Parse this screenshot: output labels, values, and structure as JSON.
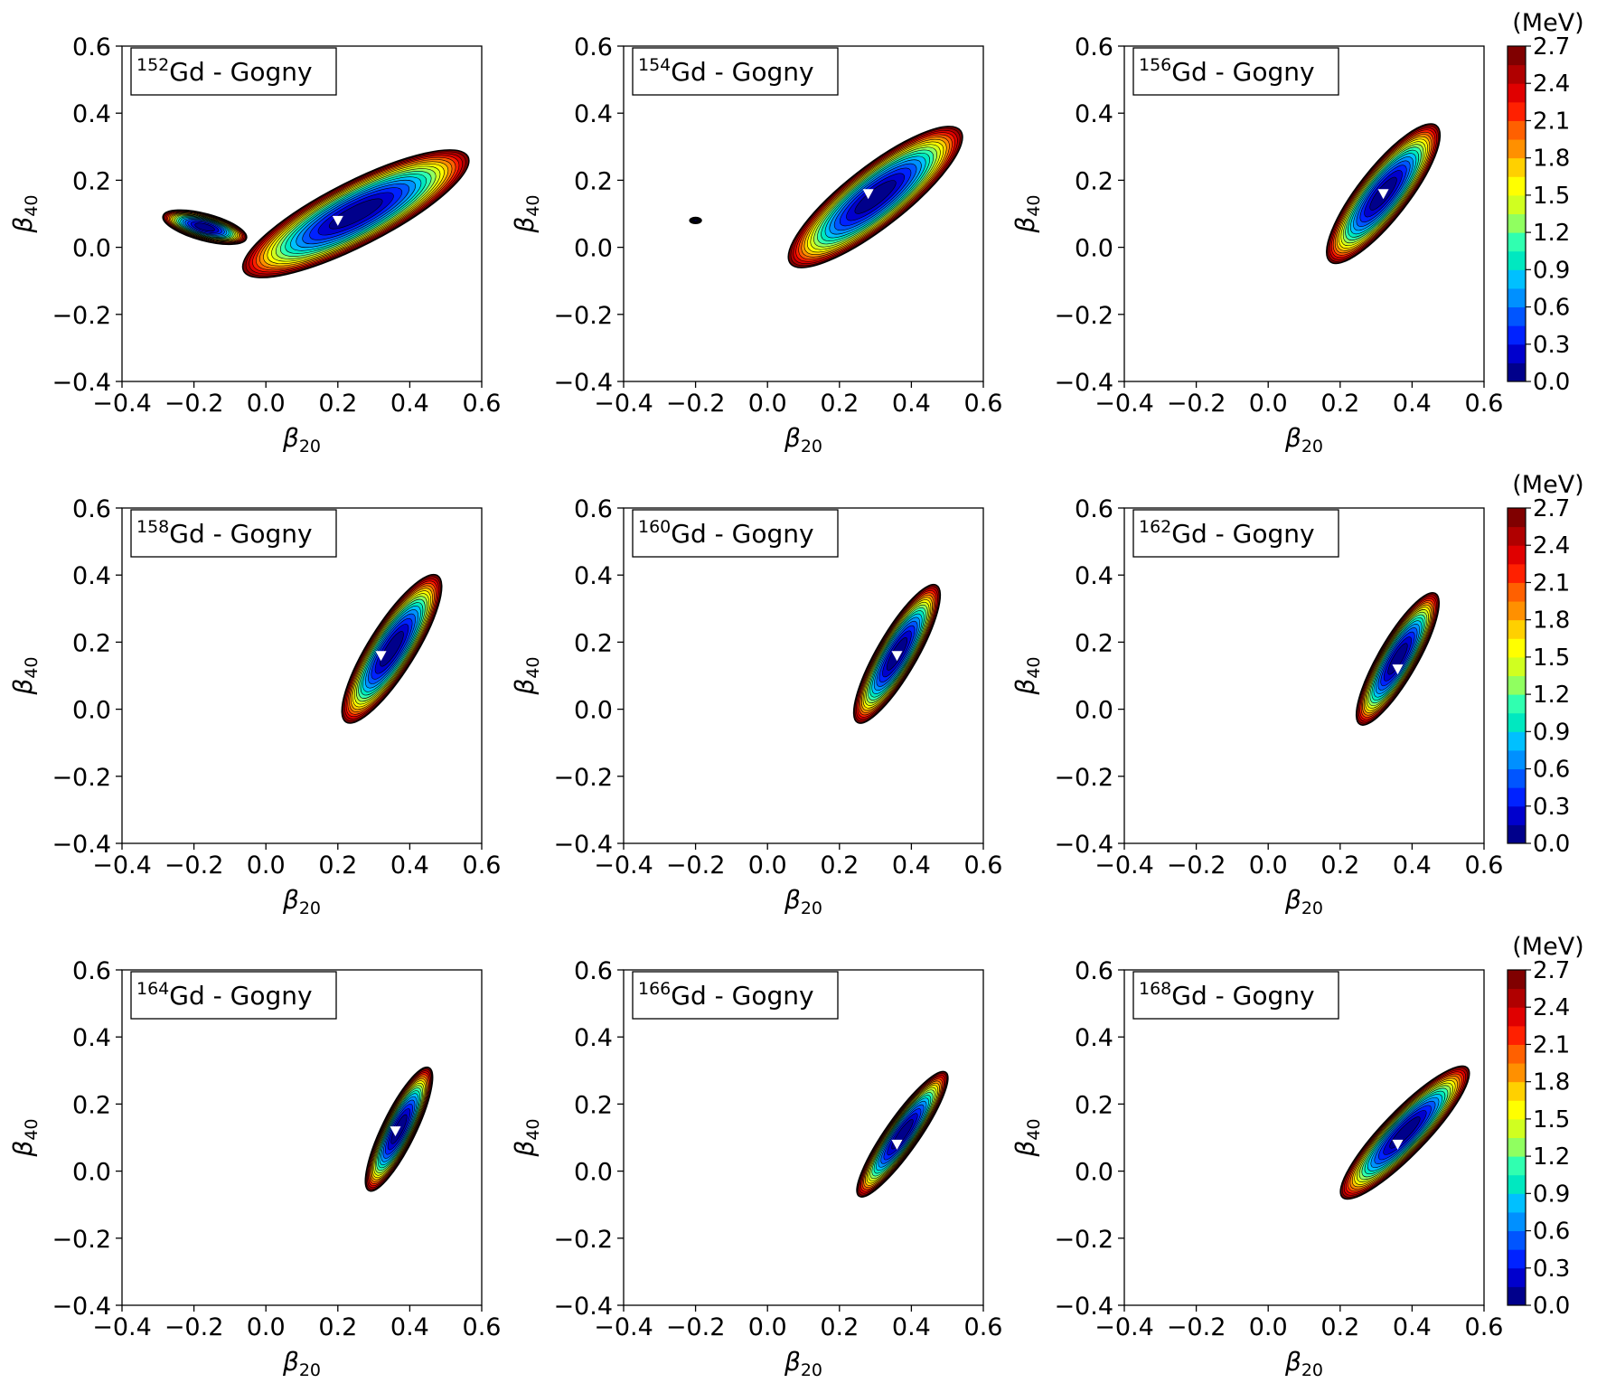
{
  "chart_data": {
    "type": "heatmap",
    "subtype": "filled-contour",
    "xlabel": "β20",
    "ylabel": "β40",
    "xlim": [
      -0.4,
      0.6
    ],
    "ylim": [
      -0.4,
      0.6
    ],
    "xticks": [
      "−0.4",
      "−0.2",
      "0.0",
      "0.2",
      "0.4",
      "0.6"
    ],
    "yticks": [
      "0.6",
      "0.4",
      "0.2",
      "0.0",
      "−0.2",
      "−0.4"
    ],
    "colorbar": {
      "unit": "(MeV)",
      "ticks": [
        "2.7",
        "2.4",
        "2.1",
        "1.8",
        "1.5",
        "1.2",
        "0.9",
        "0.6",
        "0.3",
        "0.0"
      ],
      "levels": [
        0.0,
        0.15,
        0.3,
        0.45,
        0.6,
        0.75,
        0.9,
        1.05,
        1.2,
        1.35,
        1.5,
        1.65,
        1.8,
        1.95,
        2.1,
        2.25,
        2.4,
        2.55,
        2.7
      ],
      "colors": [
        "#00008b",
        "#0000cd",
        "#0022ff",
        "#0055ff",
        "#0090ff",
        "#00c0ff",
        "#00e8c0",
        "#30ffb0",
        "#90ff60",
        "#d0ff20",
        "#ffff00",
        "#ffd000",
        "#ff9000",
        "#ff6000",
        "#ff2000",
        "#e00000",
        "#b00000",
        "#800000"
      ]
    },
    "panels": [
      {
        "nucleus": "152",
        "element": "Gd - Gogny",
        "min": {
          "b20": 0.2,
          "b40": 0.08
        },
        "bowl": {
          "cx": 0.25,
          "cy": 0.1,
          "a": 0.35,
          "b": 0.095,
          "angle": 27
        },
        "secondary": {
          "cx": -0.17,
          "cy": 0.06,
          "a": 0.12,
          "b": 0.04,
          "angle": -15
        }
      },
      {
        "nucleus": "154",
        "element": "Gd - Gogny",
        "min": {
          "b20": 0.28,
          "b40": 0.16
        },
        "bowl": {
          "cx": 0.3,
          "cy": 0.15,
          "a": 0.3,
          "b": 0.09,
          "angle": 38
        },
        "secondary": {
          "cx": -0.2,
          "cy": 0.08,
          "a": 0.016,
          "b": 0.009,
          "angle": 0
        }
      },
      {
        "nucleus": "156",
        "element": "Gd - Gogny",
        "min": {
          "b20": 0.32,
          "b40": 0.16
        },
        "bowl": {
          "cx": 0.32,
          "cy": 0.16,
          "a": 0.24,
          "b": 0.075,
          "angle": 52
        }
      },
      {
        "nucleus": "158",
        "element": "Gd - Gogny",
        "min": {
          "b20": 0.32,
          "b40": 0.16
        },
        "bowl": {
          "cx": 0.35,
          "cy": 0.18,
          "a": 0.24,
          "b": 0.07,
          "angle": 58
        }
      },
      {
        "nucleus": "160",
        "element": "Gd - Gogny",
        "min": {
          "b20": 0.36,
          "b40": 0.16
        },
        "bowl": {
          "cx": 0.36,
          "cy": 0.165,
          "a": 0.22,
          "b": 0.06,
          "angle": 60
        }
      },
      {
        "nucleus": "162",
        "element": "Gd - Gogny",
        "min": {
          "b20": 0.36,
          "b40": 0.12
        },
        "bowl": {
          "cx": 0.36,
          "cy": 0.15,
          "a": 0.21,
          "b": 0.058,
          "angle": 60
        }
      },
      {
        "nucleus": "164",
        "element": "Gd - Gogny",
        "min": {
          "b20": 0.36,
          "b40": 0.12
        },
        "bowl": {
          "cx": 0.37,
          "cy": 0.125,
          "a": 0.19,
          "b": 0.05,
          "angle": 64
        }
      },
      {
        "nucleus": "166",
        "element": "Gd - Gogny",
        "min": {
          "b20": 0.36,
          "b40": 0.08
        },
        "bowl": {
          "cx": 0.375,
          "cy": 0.11,
          "a": 0.21,
          "b": 0.05,
          "angle": 55
        }
      },
      {
        "nucleus": "168",
        "element": "Gd - Gogny",
        "min": {
          "b20": 0.36,
          "b40": 0.08
        },
        "bowl": {
          "cx": 0.38,
          "cy": 0.115,
          "a": 0.25,
          "b": 0.065,
          "angle": 46
        }
      }
    ]
  }
}
